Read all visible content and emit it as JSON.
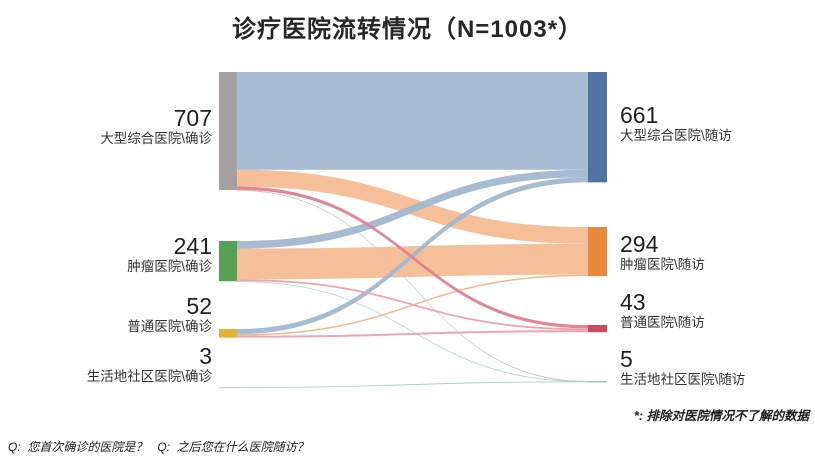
{
  "title": "诊疗医院流转情况（N=1003*）",
  "footnote": "*:  排除对医院情况不了解的数据",
  "question_note": "Q:  您首次确诊的医院是？   Q:  之后您在什么医院随访？",
  "chart_data": {
    "type": "sankey",
    "title": "诊疗医院流转情况（N=1003*）",
    "total_n": "1003",
    "legend_position": "none",
    "grid": false,
    "nodes_left": [
      {
        "label": "大型综合医院\\确诊",
        "value": 707,
        "color": "#a5a0a4"
      },
      {
        "label": "肿瘤医院\\确诊",
        "value": 241,
        "color": "#56a156"
      },
      {
        "label": "普通医院\\确诊",
        "value": 52,
        "color": "#e2b43c"
      },
      {
        "label": "生活地社区医院\\确诊",
        "value": 3,
        "color": "#d6d3d4"
      }
    ],
    "nodes_right": [
      {
        "label": "大型综合医院\\随访",
        "value": 661,
        "color": "#4f74a3"
      },
      {
        "label": "肿瘤医院\\随访",
        "value": 294,
        "color": "#e78a3b"
      },
      {
        "label": "普通医院\\随访",
        "value": 43,
        "color": "#cf4a5f"
      },
      {
        "label": "生活地社区医院\\随访",
        "value": 5,
        "color": "#8fc9bc"
      }
    ],
    "links_values_estimated_from_ribbon_widths": true,
    "links": [
      {
        "source": 0,
        "target": 0,
        "value": 585,
        "color": "#a2b7d0"
      },
      {
        "source": 0,
        "target": 1,
        "value": 101,
        "color": "#f3bc93"
      },
      {
        "source": 0,
        "target": 2,
        "value": 20,
        "color": "#e27e90"
      },
      {
        "source": 0,
        "target": 3,
        "value": 1,
        "color": "#c6c2c4"
      },
      {
        "source": 1,
        "target": 0,
        "value": 45,
        "color": "#a2b7d0"
      },
      {
        "source": 1,
        "target": 1,
        "value": 184,
        "color": "#f3bc93"
      },
      {
        "source": 1,
        "target": 2,
        "value": 11,
        "color": "#eda0ae"
      },
      {
        "source": 1,
        "target": 3,
        "value": 1,
        "color": "#aed8cd"
      },
      {
        "source": 2,
        "target": 0,
        "value": 31,
        "color": "#a2b7d0"
      },
      {
        "source": 2,
        "target": 1,
        "value": 9,
        "color": "#f2b484"
      },
      {
        "source": 2,
        "target": 2,
        "value": 12,
        "color": "#eda0ae"
      },
      {
        "source": 3,
        "target": 3,
        "value": 3,
        "color": "#9fd2c5"
      }
    ]
  }
}
